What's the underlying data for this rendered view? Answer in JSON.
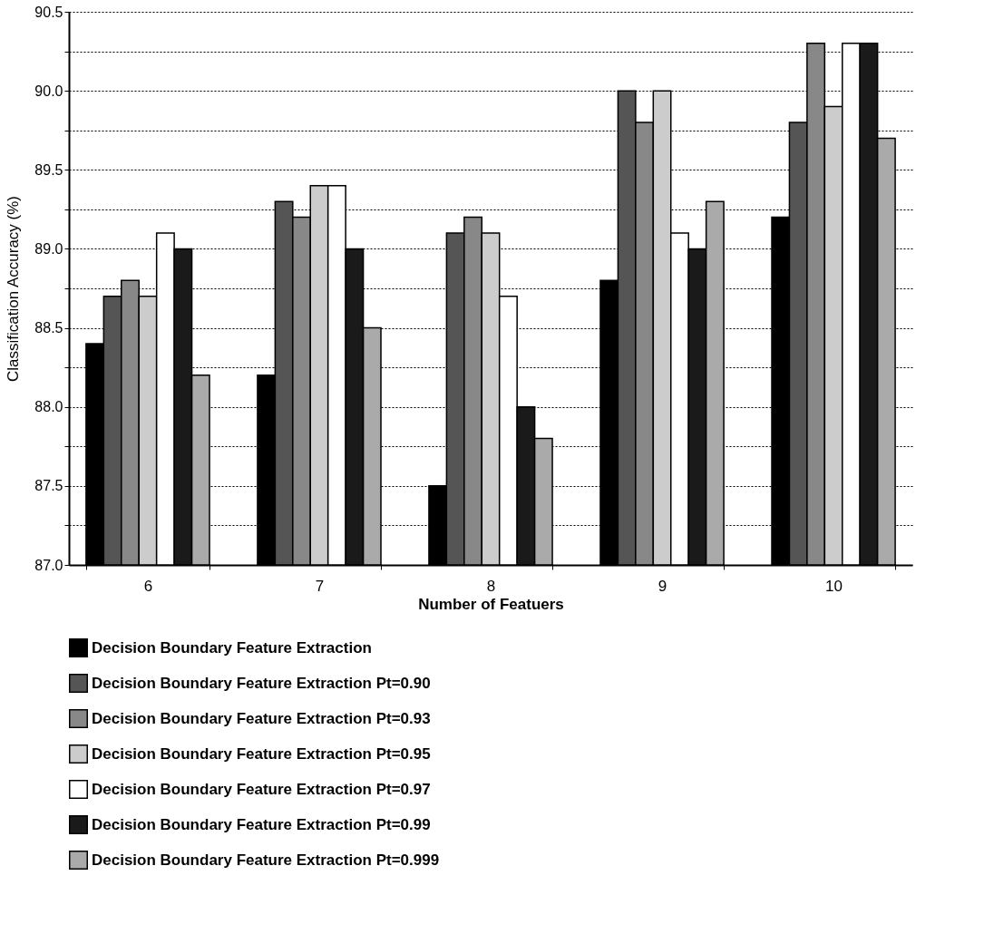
{
  "chart_data": {
    "type": "bar",
    "xlabel": "Number of Featuers",
    "ylabel": "Classification Accuracy (%)",
    "categories": [
      "6",
      "7",
      "8",
      "9",
      "10"
    ],
    "series": [
      {
        "name": "Decision Boundary Feature Extraction",
        "color": "#000000",
        "values": [
          88.4,
          88.2,
          87.5,
          88.8,
          89.2
        ]
      },
      {
        "name": "Decision Boundary Feature Extraction Pt=0.90",
        "color": "#555555",
        "values": [
          88.7,
          89.3,
          89.1,
          90.0,
          89.8
        ]
      },
      {
        "name": "Decision Boundary Feature Extraction Pt=0.93",
        "color": "#888888",
        "values": [
          88.8,
          89.2,
          89.2,
          89.8,
          90.3
        ]
      },
      {
        "name": "Decision Boundary Feature Extraction Pt=0.95",
        "color": "#cccccc",
        "values": [
          88.7,
          89.4,
          89.1,
          90.0,
          89.9
        ]
      },
      {
        "name": "Decision Boundary Feature Extraction Pt=0.97",
        "color": "#ffffff",
        "values": [
          89.1,
          89.4,
          88.7,
          89.1,
          90.3
        ]
      },
      {
        "name": "Decision Boundary Feature Extraction Pt=0.99",
        "color": "#1a1a1a",
        "values": [
          89.0,
          89.0,
          88.0,
          89.0,
          90.3
        ]
      },
      {
        "name": "Decision Boundary Feature Extraction Pt=0.999",
        "color": "#aaaaaa",
        "values": [
          88.2,
          88.5,
          87.8,
          89.3,
          89.7
        ]
      }
    ],
    "ylim": [
      87,
      90.5
    ],
    "yticks": [
      {
        "value": 87,
        "label": "87.0"
      },
      {
        "value": 87.25,
        "label": null
      },
      {
        "value": 87.5,
        "label": "87.5"
      },
      {
        "value": 87.75,
        "label": null
      },
      {
        "value": 88,
        "label": "88.0"
      },
      {
        "value": 88.25,
        "label": null
      },
      {
        "value": 88.5,
        "label": "88.5"
      },
      {
        "value": 88.75,
        "label": null
      },
      {
        "value": 89,
        "label": "89.0"
      },
      {
        "value": 89.25,
        "label": null
      },
      {
        "value": 89.5,
        "label": "89.5"
      },
      {
        "value": 89.75,
        "label": null
      },
      {
        "value": 90,
        "label": "90.0"
      },
      {
        "value": 90.25,
        "label": null
      },
      {
        "value": 90.5,
        "label": "90.5"
      }
    ],
    "grid": "y",
    "legend": "bottom"
  }
}
